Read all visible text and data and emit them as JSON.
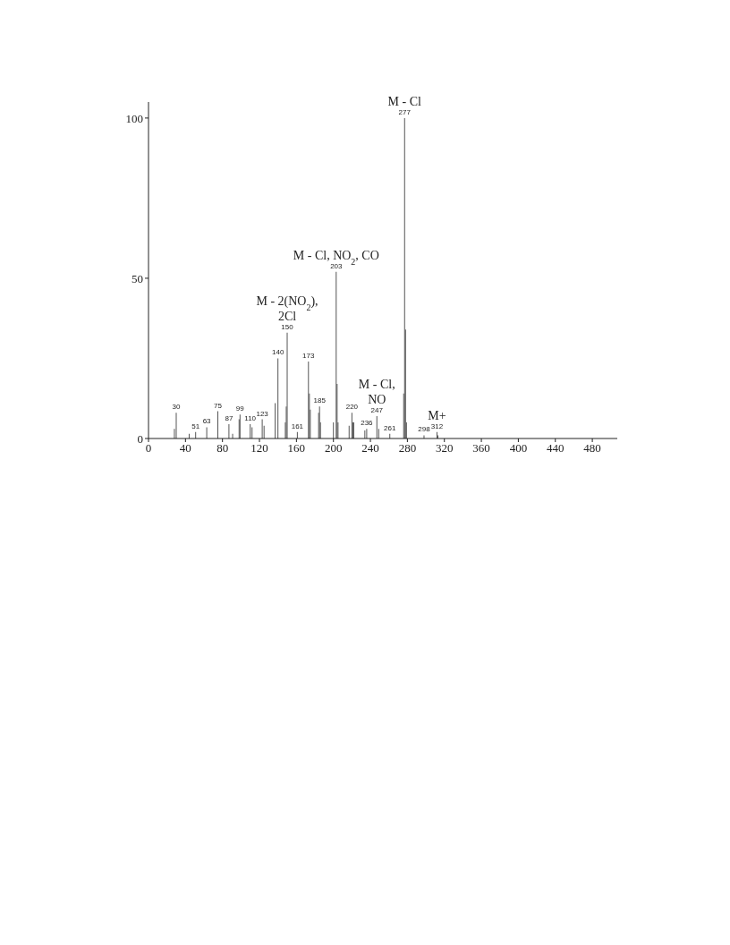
{
  "chart_data": {
    "type": "bar",
    "color": "#555555",
    "x": [
      28,
      30,
      44,
      51,
      63,
      75,
      87,
      91,
      98,
      99,
      110,
      112,
      123,
      125,
      137,
      140,
      148,
      149,
      150,
      161,
      173,
      174,
      175,
      184,
      185,
      186,
      200,
      203,
      204,
      205,
      217,
      220,
      221,
      222,
      234,
      236,
      247,
      249,
      261,
      276,
      277,
      278,
      279,
      298,
      312,
      313
    ],
    "values": [
      3,
      8,
      1.5,
      2,
      3.5,
      8.5,
      4.5,
      1.5,
      6,
      7.5,
      4.5,
      3.5,
      6,
      4,
      11,
      25,
      5,
      10,
      33,
      2,
      24,
      14,
      9,
      8,
      10,
      5,
      5,
      52,
      17,
      5,
      4,
      8,
      5,
      5,
      2.5,
      3,
      7,
      3,
      1.5,
      14,
      100,
      34,
      5,
      1,
      2,
      1
    ],
    "xlim": [
      0,
      507
    ],
    "xticks": [
      0,
      40,
      80,
      120,
      160,
      200,
      240,
      280,
      320,
      360,
      400,
      440,
      480
    ],
    "ylim": [
      0,
      105
    ],
    "yticks": [
      0,
      50,
      100
    ],
    "annotations": [
      {
        "text": "30",
        "x": 30,
        "y": 8
      },
      {
        "text": "51",
        "x": 51,
        "y": 2
      },
      {
        "text": "63",
        "x": 63,
        "y": 3.5
      },
      {
        "text": "75",
        "x": 75,
        "y": 8.5
      },
      {
        "text": "87",
        "x": 87,
        "y": 4.5
      },
      {
        "text": "99",
        "x": 99,
        "y": 7.5
      },
      {
        "text": "110",
        "x": 110,
        "y": 4.5
      },
      {
        "text": "123",
        "x": 123,
        "y": 6
      },
      {
        "text": "140",
        "x": 140,
        "y": 25
      },
      {
        "text": "150",
        "x": 150,
        "y": 33
      },
      {
        "text": "161",
        "x": 161,
        "y": 2
      },
      {
        "text": "173",
        "x": 173,
        "y": 24
      },
      {
        "text": "185",
        "x": 185,
        "y": 10
      },
      {
        "text": "203",
        "x": 203,
        "y": 52
      },
      {
        "text": "220",
        "x": 220,
        "y": 8
      },
      {
        "text": "236",
        "x": 236,
        "y": 3
      },
      {
        "text": "247",
        "x": 247,
        "y": 7
      },
      {
        "text": "261",
        "x": 261,
        "y": 1.5
      },
      {
        "text": "277",
        "x": 277,
        "y": 100
      },
      {
        "text": "298",
        "x": 298,
        "y": 1
      },
      {
        "text": "312",
        "x": 312,
        "y": 2
      },
      {
        "text": "M - Cl",
        "x": 277,
        "y": 100
      },
      {
        "text": "M - Cl, NO$_{2}$, CO",
        "x": 203,
        "y": 52
      },
      {
        "text": "M - 2(NO$_{2}$),\n2Cl",
        "x": 150,
        "y": 33
      },
      {
        "text": "M - Cl,\nNO",
        "x": 247,
        "y": 7
      },
      {
        "text": "M+",
        "x": 312,
        "y": 2
      }
    ]
  }
}
